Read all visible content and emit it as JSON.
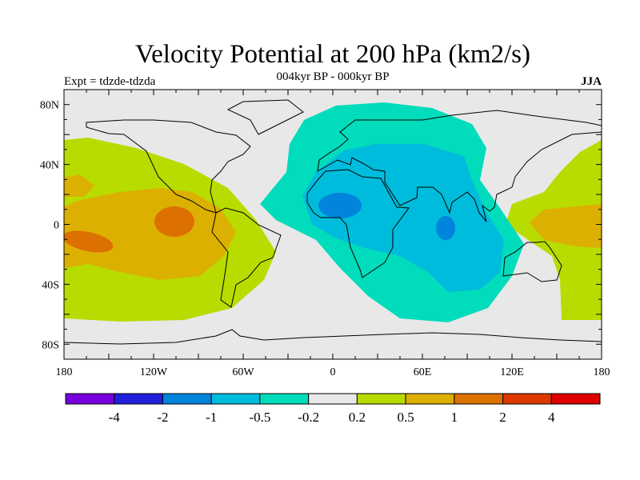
{
  "title": "Velocity Potential at 200 hPa (km2/s)",
  "subtitle_left": "Expt = tdzde-tdzda",
  "subtitle_center": "004kyr BP - 000kyr BP",
  "subtitle_right": "JJA",
  "chart_data": {
    "type": "heatmap",
    "projection": "cylindrical equidistant",
    "lon_range": [
      -180,
      180
    ],
    "lat_range": [
      -90,
      90
    ],
    "lat_ticks": [
      {
        "v": 80,
        "label": "80N"
      },
      {
        "v": 40,
        "label": "40N"
      },
      {
        "v": 0,
        "label": "0"
      },
      {
        "v": -40,
        "label": "40S"
      },
      {
        "v": -80,
        "label": "80S"
      }
    ],
    "lon_ticks": [
      {
        "v": -180,
        "label": "180"
      },
      {
        "v": -120,
        "label": "120W"
      },
      {
        "v": -60,
        "label": "60W"
      },
      {
        "v": 0,
        "label": "0"
      },
      {
        "v": 60,
        "label": "60E"
      },
      {
        "v": 120,
        "label": "120E"
      },
      {
        "v": 180,
        "label": "180"
      }
    ],
    "colorbar": {
      "levels": [
        "-4",
        "-2",
        "-1",
        "-0.5",
        "-0.2",
        "0.2",
        "0.5",
        "1",
        "2",
        "4"
      ],
      "colors": [
        "#7800dc",
        "#2020dc",
        "#0084dc",
        "#00bcdc",
        "#00dcbc",
        "#e8e8e8",
        "#b8dc00",
        "#dcb000",
        "#dc7000",
        "#dc3800",
        "#dc0000"
      ],
      "placement": "bottom"
    },
    "features": [
      {
        "name": "negative-center-africa",
        "min_band": "-2 to -1",
        "lon": 5,
        "lat": 12
      },
      {
        "name": "negative-center-indian-ocean",
        "min_band": "-2 to -1",
        "lon": 75,
        "lat": -3
      },
      {
        "name": "positive-center-east-pacific",
        "max_band": "1 to 2",
        "lon": -110,
        "lat": 2
      },
      {
        "name": "positive-center-central-pacific",
        "max_band": "1 to 2",
        "lon": -165,
        "lat": -10
      }
    ]
  }
}
